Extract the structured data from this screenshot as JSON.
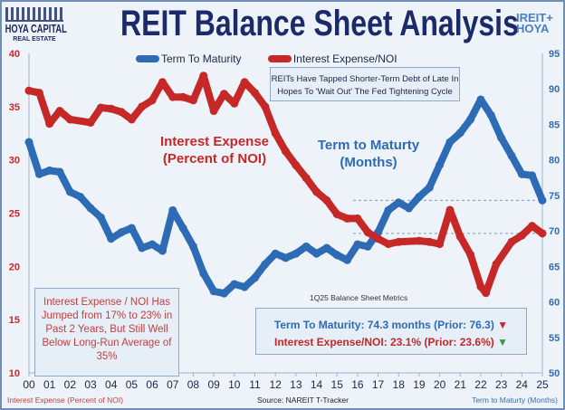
{
  "header": {
    "title": "REIT Balance Sheet Analysis",
    "logo_left": "HOYA CAPITAL",
    "logo_left_sub": "REAL ESTATE",
    "logo_right_1": "IREIT+",
    "logo_right_2": "HOYA"
  },
  "annotations": {
    "top_note_1": "REITs Have Tapped Shorter-Term Debt of Late In",
    "top_note_2": "Hopes To 'Wait Out' The Fed Tightening Cycle",
    "interest_label_1": "Interest Expense",
    "interest_label_2": "(Percent of NOI)",
    "term_label_1": "Term to Maturty",
    "term_label_2": "(Months)",
    "left_note": "Interest Expense / NOI Has Jumped from 17% to 23% in Past 2 Years, But Still Well Below Long-Run Average of 35%",
    "metrics_caption": "1Q25 Balance Sheet Metrics",
    "metric_term": "Term To Maturity: 74.3 months (Prior: 76.3)",
    "metric_interest": "Interest Expense/NOI: 23.1% (Prior: 23.6%)",
    "metric_term_arrow": "▼",
    "metric_interest_arrow": "▼",
    "source": "Source: NAREIT T-Tracker"
  },
  "colors": {
    "term": "#2e6bb5",
    "interest": "#c62828",
    "down_red": "#c62828",
    "down_green": "#3a9a4a"
  },
  "chart_data": {
    "type": "line",
    "title": "REIT Balance Sheet Analysis",
    "xlabel": "",
    "ylabel_left": "Interest Expense (Percent of NOI)",
    "ylabel_right": "Term to Maturty (Months)",
    "x_ticks": [
      "00",
      "01",
      "02",
      "03",
      "04",
      "05",
      "06",
      "07",
      "08",
      "09",
      "10",
      "11",
      "12",
      "13",
      "14",
      "15",
      "16",
      "17",
      "18",
      "19",
      "20",
      "21",
      "22",
      "23",
      "24",
      "25"
    ],
    "y_left_ticks": [
      10,
      15,
      20,
      25,
      30,
      35,
      40
    ],
    "y_right_ticks": [
      50,
      55,
      60,
      65,
      70,
      75,
      80,
      85,
      90,
      95
    ],
    "ylim_left": [
      10,
      40
    ],
    "ylim_right": [
      50,
      95
    ],
    "xlim": [
      2000,
      2025
    ],
    "legend": "top",
    "series": [
      {
        "name": "Term To Maturity",
        "axis": "right",
        "color": "#2e6bb5",
        "x": [
          2000,
          2000.5,
          2001,
          2001.5,
          2002,
          2002.5,
          2003,
          2003.5,
          2004,
          2004.5,
          2005,
          2005.5,
          2006,
          2006.5,
          2007,
          2007.5,
          2008,
          2008.5,
          2009,
          2009.5,
          2010,
          2010.5,
          2011,
          2011.5,
          2012,
          2012.5,
          2013,
          2013.5,
          2014,
          2014.5,
          2015,
          2015.5,
          2016,
          2016.5,
          2017,
          2017.5,
          2018,
          2018.5,
          2019,
          2019.5,
          2020,
          2020.5,
          2021,
          2021.5,
          2022,
          2022.5,
          2023,
          2023.5,
          2024,
          2024.5,
          2025
        ],
        "values": [
          82.5,
          78,
          78.5,
          78.3,
          75.5,
          74.8,
          73.2,
          71.9,
          68.9,
          69.8,
          70.4,
          67.6,
          68.1,
          67.2,
          72.9,
          70.4,
          67.8,
          64,
          61.5,
          61.2,
          62.5,
          62.1,
          63.4,
          65.3,
          66.8,
          66.2,
          66.8,
          67.8,
          66.8,
          67.6,
          66.6,
          65.9,
          68.1,
          67.8,
          69.8,
          72.9,
          74,
          73.2,
          74.8,
          76.1,
          79.3,
          82.5,
          83.8,
          85.7,
          88.5,
          86.3,
          83.1,
          80.6,
          78,
          77.8,
          74.3
        ]
      },
      {
        "name": "Interest Expense/NOI",
        "axis": "left",
        "color": "#c62828",
        "x": [
          2000,
          2000.5,
          2001,
          2001.5,
          2002,
          2003,
          2003.5,
          2004,
          2004.5,
          2005,
          2005.5,
          2006,
          2006.5,
          2007,
          2007.5,
          2008,
          2008.5,
          2009,
          2009.5,
          2010,
          2010.5,
          2011,
          2011.5,
          2012,
          2012.5,
          2013,
          2013.5,
          2014,
          2014.5,
          2015,
          2015.5,
          2016,
          2016.5,
          2017,
          2017.5,
          2018,
          2019,
          2019.5,
          2020,
          2020.5,
          2021,
          2021.5,
          2022,
          2022.25,
          2022.75,
          2023.5,
          2024,
          2024.5,
          2025
        ],
        "values": [
          36.5,
          36.3,
          33.4,
          34.6,
          33.8,
          33.5,
          34.9,
          34.8,
          34.5,
          33.8,
          35,
          35.6,
          37.3,
          35.9,
          35.9,
          35.6,
          37.9,
          34.6,
          36.2,
          35.3,
          37.3,
          36.3,
          35,
          32.5,
          30.8,
          29.5,
          28.3,
          27,
          26.2,
          24.9,
          24.5,
          24.5,
          23.2,
          22.6,
          22.1,
          22.3,
          22.4,
          22.3,
          22.1,
          25.3,
          22.8,
          21.1,
          18.1,
          17.5,
          20.2,
          22.3,
          22.9,
          23.8,
          23.1
        ]
      }
    ]
  }
}
